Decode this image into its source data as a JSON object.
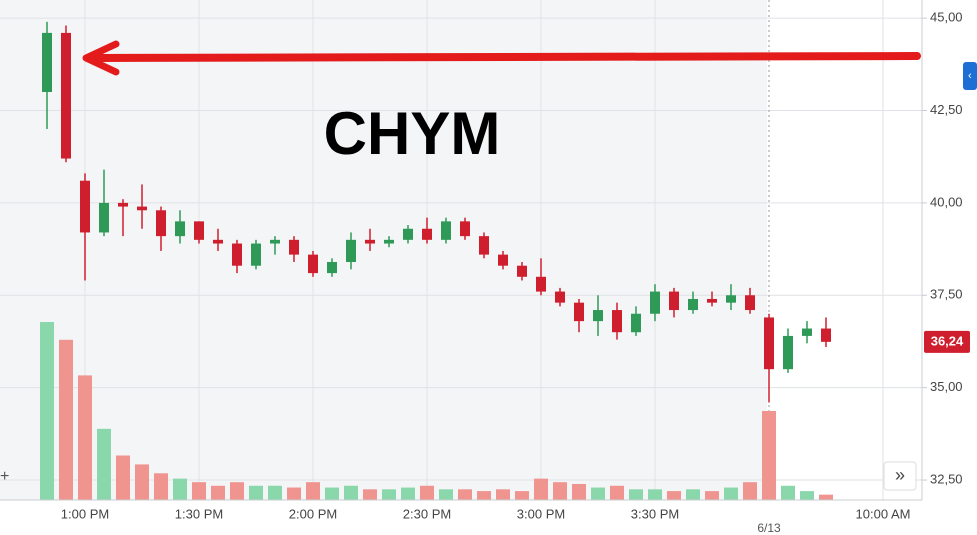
{
  "chart_data": {
    "type": "candlestick",
    "annotation": "CHYM",
    "categories": [
      null,
      null,
      "1:00 PM",
      null,
      null,
      null,
      null,
      null,
      "1:30 PM",
      null,
      null,
      null,
      null,
      null,
      "2:00 PM",
      null,
      null,
      null,
      null,
      null,
      "2:30 PM",
      null,
      null,
      null,
      null,
      null,
      "3:00 PM",
      null,
      null,
      null,
      null,
      null,
      "3:30 PM",
      null,
      null,
      null,
      null,
      null,
      "6/13",
      null,
      null,
      null,
      null,
      null,
      "10:00 AM",
      null,
      null
    ],
    "open": [
      43.0,
      44.6,
      40.6,
      39.2,
      40.0,
      39.9,
      39.8,
      39.1,
      39.5,
      39.0,
      38.9,
      38.3,
      38.9,
      39.0,
      38.6,
      38.1,
      38.4,
      39.0,
      38.9,
      39.0,
      39.3,
      39.0,
      39.5,
      39.1,
      38.6,
      38.3,
      38.0,
      37.6,
      37.3,
      36.8,
      37.1,
      36.5,
      37.0,
      37.6,
      37.1,
      37.4,
      37.3,
      37.5,
      36.9,
      35.5,
      36.4,
      36.6,
      null,
      null,
      null,
      null,
      null
    ],
    "high": [
      44.9,
      44.8,
      40.8,
      40.9,
      40.1,
      40.5,
      39.9,
      39.8,
      39.5,
      39.3,
      39.0,
      39.0,
      39.1,
      39.1,
      38.7,
      38.5,
      39.2,
      39.3,
      39.1,
      39.4,
      39.6,
      39.6,
      39.6,
      39.2,
      38.7,
      38.4,
      38.5,
      37.7,
      37.4,
      37.5,
      37.3,
      37.2,
      37.8,
      37.7,
      37.6,
      37.6,
      37.8,
      37.7,
      37.0,
      36.6,
      36.8,
      36.9,
      null,
      null,
      null,
      null,
      null
    ],
    "low": [
      42.0,
      41.1,
      37.9,
      39.1,
      39.1,
      39.3,
      38.7,
      38.9,
      38.9,
      38.7,
      38.1,
      38.2,
      38.6,
      38.4,
      38.0,
      38.0,
      38.2,
      38.7,
      38.8,
      38.9,
      38.9,
      38.9,
      39.0,
      38.5,
      38.2,
      37.9,
      37.5,
      37.2,
      36.5,
      36.4,
      36.3,
      36.4,
      36.8,
      36.9,
      37.0,
      37.2,
      37.1,
      37.0,
      34.6,
      35.4,
      36.2,
      36.1,
      null,
      null,
      null,
      null,
      null
    ],
    "close": [
      44.6,
      41.2,
      39.2,
      40.0,
      39.9,
      39.8,
      39.1,
      39.5,
      39.0,
      38.9,
      38.3,
      38.9,
      39.0,
      38.6,
      38.1,
      38.4,
      39.0,
      38.9,
      39.0,
      39.3,
      39.0,
      39.5,
      39.1,
      38.6,
      38.3,
      38.0,
      37.6,
      37.3,
      36.8,
      37.1,
      36.5,
      37.0,
      37.6,
      37.1,
      37.4,
      37.3,
      37.5,
      37.1,
      35.5,
      36.4,
      36.6,
      36.24,
      null,
      null,
      null,
      null,
      null
    ],
    "volume": [
      100,
      90,
      70,
      40,
      25,
      20,
      15,
      12,
      10,
      8,
      10,
      8,
      8,
      7,
      10,
      7,
      8,
      6,
      6,
      7,
      8,
      6,
      6,
      5,
      6,
      5,
      12,
      10,
      9,
      7,
      8,
      6,
      6,
      5,
      6,
      5,
      7,
      10,
      50,
      8,
      5,
      3,
      null,
      null,
      null,
      null,
      null
    ],
    "up_color": "#2f9a58",
    "down_color": "#cf1f2e",
    "up_volume_color": "#8ad7ab",
    "down_volume_color": "#ef948f",
    "ylim": [
      31.96,
      45.49
    ],
    "vlim": [
      0,
      100
    ],
    "yticks": [
      {
        "value": 32.5,
        "label": "32,50"
      },
      {
        "value": 35,
        "label": "35,00"
      },
      {
        "value": 37.5,
        "label": "37,50"
      },
      {
        "value": 40,
        "label": "40,00"
      },
      {
        "value": 42.5,
        "label": "42,50"
      },
      {
        "value": 45,
        "label": "45,00"
      }
    ],
    "last_price": {
      "value": 36.24,
      "label": "36,24"
    },
    "grid": true
  }
}
